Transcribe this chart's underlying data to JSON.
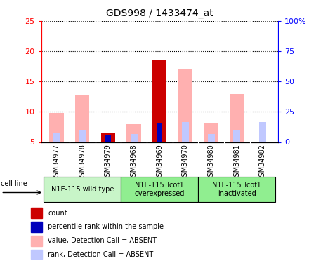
{
  "title": "GDS998 / 1433474_at",
  "samples": [
    "GSM34977",
    "GSM34978",
    "GSM34979",
    "GSM34968",
    "GSM34969",
    "GSM34970",
    "GSM34980",
    "GSM34981",
    "GSM34982"
  ],
  "value_absent": [
    9.8,
    12.7,
    null,
    7.9,
    null,
    17.1,
    8.2,
    13.0,
    null
  ],
  "rank_absent": [
    6.5,
    7.0,
    null,
    6.3,
    8.2,
    8.3,
    6.3,
    6.9,
    8.3
  ],
  "count": [
    null,
    null,
    6.4,
    null,
    18.5,
    null,
    null,
    null,
    null
  ],
  "percentile_rank": [
    null,
    null,
    6.2,
    null,
    8.1,
    null,
    null,
    null,
    null
  ],
  "ylim_left": [
    5,
    25
  ],
  "ylim_right": [
    0,
    100
  ],
  "yticks_left": [
    5,
    10,
    15,
    20,
    25
  ],
  "ytick_labels_left": [
    "5",
    "10",
    "15",
    "20",
    "25"
  ],
  "yticks_right": [
    0,
    25,
    50,
    75,
    100
  ],
  "ytick_labels_right": [
    "0",
    "25",
    "50",
    "75",
    "100%"
  ],
  "color_count": "#cc0000",
  "color_percentile": "#0000bb",
  "color_value_absent": "#ffb0b0",
  "color_rank_absent": "#c0c8ff",
  "bar_width": 0.55,
  "groups_info": [
    {
      "label": "N1E-115 wild type",
      "start": 0,
      "end": 2,
      "color": "#c8f5c8"
    },
    {
      "label": "N1E-115 Tcof1\noverexpressed",
      "start": 3,
      "end": 5,
      "color": "#90ee90"
    },
    {
      "label": "N1E-115 Tcof1\ninactivated",
      "start": 6,
      "end": 8,
      "color": "#90ee90"
    }
  ],
  "legend_items": [
    {
      "color": "#cc0000",
      "label": "count"
    },
    {
      "color": "#0000bb",
      "label": "percentile rank within the sample"
    },
    {
      "color": "#ffb0b0",
      "label": "value, Detection Call = ABSENT"
    },
    {
      "color": "#c0c8ff",
      "label": "rank, Detection Call = ABSENT"
    }
  ]
}
